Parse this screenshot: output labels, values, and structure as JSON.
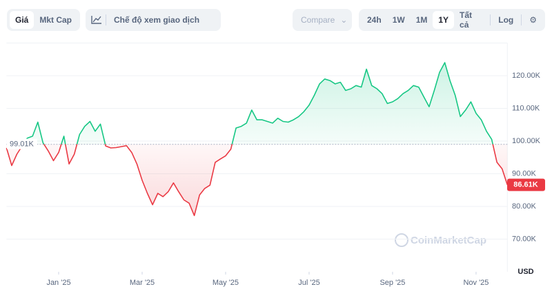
{
  "toolbar": {
    "tabs": [
      "Giá",
      "Mkt Cap"
    ],
    "view_mode": "Chế độ xem giao dịch",
    "compare": "Compare",
    "ranges": [
      "24h",
      "1W",
      "1M",
      "1Y",
      "Tất cả"
    ],
    "log": "Log"
  },
  "watermark": "CoinMarketCap",
  "chart_data": {
    "type": "area",
    "currency": "USD",
    "categories": [
      null,
      null,
      null,
      null,
      null,
      null,
      null,
      null,
      null,
      null,
      "Jan '25",
      null,
      null,
      null,
      null,
      null,
      null,
      null,
      null,
      null,
      null,
      null,
      null,
      null,
      null,
      null,
      "Mar '25",
      null,
      null,
      null,
      null,
      null,
      null,
      null,
      null,
      null,
      null,
      null,
      null,
      null,
      null,
      null,
      "May '25",
      null,
      null,
      null,
      null,
      null,
      null,
      null,
      null,
      null,
      null,
      null,
      null,
      null,
      null,
      null,
      "Jul '25",
      null,
      null,
      null,
      null,
      null,
      null,
      null,
      null,
      null,
      null,
      null,
      null,
      null,
      null,
      null,
      "Sep '25",
      null,
      null,
      null,
      null,
      null,
      null,
      null,
      null,
      null,
      null,
      null,
      null,
      null,
      null,
      null,
      "Nov '25",
      null,
      null,
      null,
      null,
      null,
      null
    ],
    "values": [
      97900,
      92500,
      96000,
      98500,
      100900,
      101500,
      105800,
      99500,
      97000,
      94000,
      96500,
      101500,
      93000,
      96000,
      102000,
      104500,
      106000,
      103000,
      105200,
      98500,
      97900,
      98000,
      98300,
      98600,
      96500,
      93000,
      88000,
      84000,
      80500,
      84000,
      83000,
      84500,
      87200,
      84500,
      82000,
      81000,
      77200,
      83500,
      85500,
      86500,
      93500,
      94500,
      95500,
      97500,
      104000,
      104500,
      105500,
      109500,
      106500,
      106500,
      106000,
      105500,
      107000,
      106000,
      105800,
      106500,
      107500,
      109000,
      111000,
      114000,
      117500,
      119000,
      118500,
      117500,
      118000,
      115500,
      116000,
      117000,
      116500,
      122000,
      117000,
      116000,
      114500,
      111500,
      112000,
      113000,
      114500,
      115500,
      117000,
      116500,
      113500,
      110500,
      115500,
      121000,
      124000,
      118500,
      114000,
      107500,
      109500,
      112000,
      108500,
      106500,
      103000,
      100500,
      93500,
      91500,
      86610
    ],
    "value_labels": [
      null,
      null,
      null,
      null,
      null,
      null,
      null,
      null,
      null,
      null,
      null,
      null,
      null,
      null,
      null,
      null,
      null,
      null,
      null,
      null,
      null,
      null,
      null,
      null,
      null,
      null,
      null,
      null,
      null,
      null,
      null,
      null,
      null,
      null,
      null,
      null,
      null,
      null,
      null,
      null,
      null,
      null,
      null,
      null,
      null,
      null,
      null,
      null,
      null,
      null,
      null,
      null,
      null,
      null,
      null,
      null,
      null,
      null,
      null,
      null,
      null,
      null,
      null,
      null,
      null,
      null,
      null,
      null,
      null,
      null,
      null,
      null,
      null,
      null,
      null,
      null,
      null,
      null,
      null,
      null,
      null,
      null,
      null,
      null,
      null,
      null,
      null,
      null,
      null,
      null,
      null,
      null,
      null,
      null,
      null,
      null,
      "86.61K"
    ],
    "baseline": {
      "value": 99010,
      "label": "99.01K"
    },
    "up_color": "#16c784",
    "down_color": "#ea3943",
    "ylim": [
      60000,
      130000
    ],
    "yticks": [
      {
        "value": 70000,
        "label": "70.00K"
      },
      {
        "value": 80000,
        "label": "80.00K"
      },
      {
        "value": 90000,
        "label": "90.00K"
      },
      {
        "value": 100000,
        "label": "100.00K"
      },
      {
        "value": 110000,
        "label": "110.00K"
      },
      {
        "value": 120000,
        "label": "120.00K"
      }
    ],
    "grid": true
  }
}
